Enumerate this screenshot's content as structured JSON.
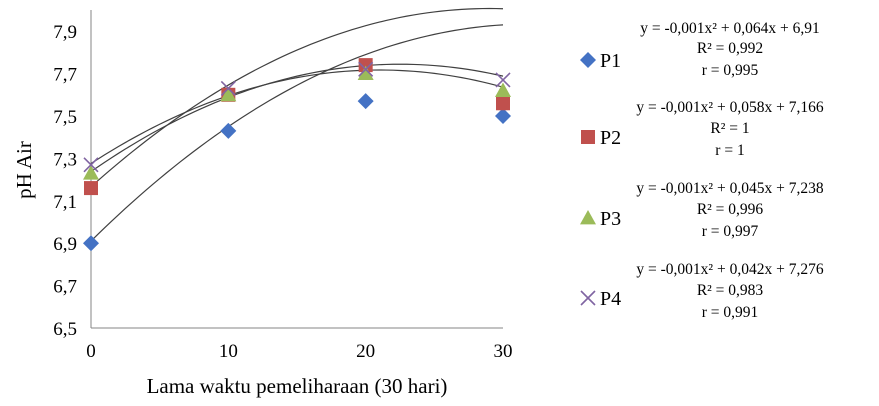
{
  "chart_data": {
    "type": "scatter",
    "xlabel": "Lama waktu pemeliharaan (30 hari)",
    "ylabel": "pH Air",
    "x": [
      0,
      10,
      20,
      30
    ],
    "xticks": [
      "0",
      "10",
      "20",
      "30"
    ],
    "yticks": [
      "6,5",
      "6,7",
      "6,9",
      "7,1",
      "7,3",
      "7,5",
      "7,7",
      "7,9"
    ],
    "xlim": [
      0,
      30
    ],
    "ylim": [
      6.5,
      8.0
    ],
    "grid": false,
    "legend_position": "right",
    "trendline": "polynomial order 2",
    "series": [
      {
        "name": "P1",
        "marker": "diamond",
        "color": "#4472c4",
        "line_color": "#404040",
        "values": [
          6.9,
          7.43,
          7.57,
          7.5
        ],
        "coef": [
          -0.001,
          0.064,
          6.91
        ],
        "equation": "y = -0,001x² + 0,064x + 6,91",
        "r2": "R² = 0,992",
        "r": "r = 0,995"
      },
      {
        "name": "P2",
        "marker": "square",
        "color": "#c0504d",
        "line_color": "#404040",
        "values": [
          7.16,
          7.6,
          7.74,
          7.56
        ],
        "coef": [
          -0.001,
          0.058,
          7.166
        ],
        "equation": "y = -0,001x² + 0,058x + 7,166",
        "r2": "R² = 1",
        "r": "r = 1"
      },
      {
        "name": "P3",
        "marker": "triangle",
        "color": "#9bbb59",
        "line_color": "#404040",
        "values": [
          7.23,
          7.6,
          7.7,
          7.62
        ],
        "coef": [
          -0.001,
          0.045,
          7.238
        ],
        "equation": "y = -0,001x² + 0,045x + 7,238",
        "r2": "R² = 0,996",
        "r": "r = 0,997"
      },
      {
        "name": "P4",
        "marker": "x",
        "color": "#8064a2",
        "line_color": "#404040",
        "values": [
          7.27,
          7.63,
          7.72,
          7.67
        ],
        "coef": [
          -0.001,
          0.042,
          7.276
        ],
        "equation": "y = -0,001x² + 0,042x + 7,276",
        "r2": "R² = 0,983",
        "r": "r = 0,991"
      }
    ]
  }
}
